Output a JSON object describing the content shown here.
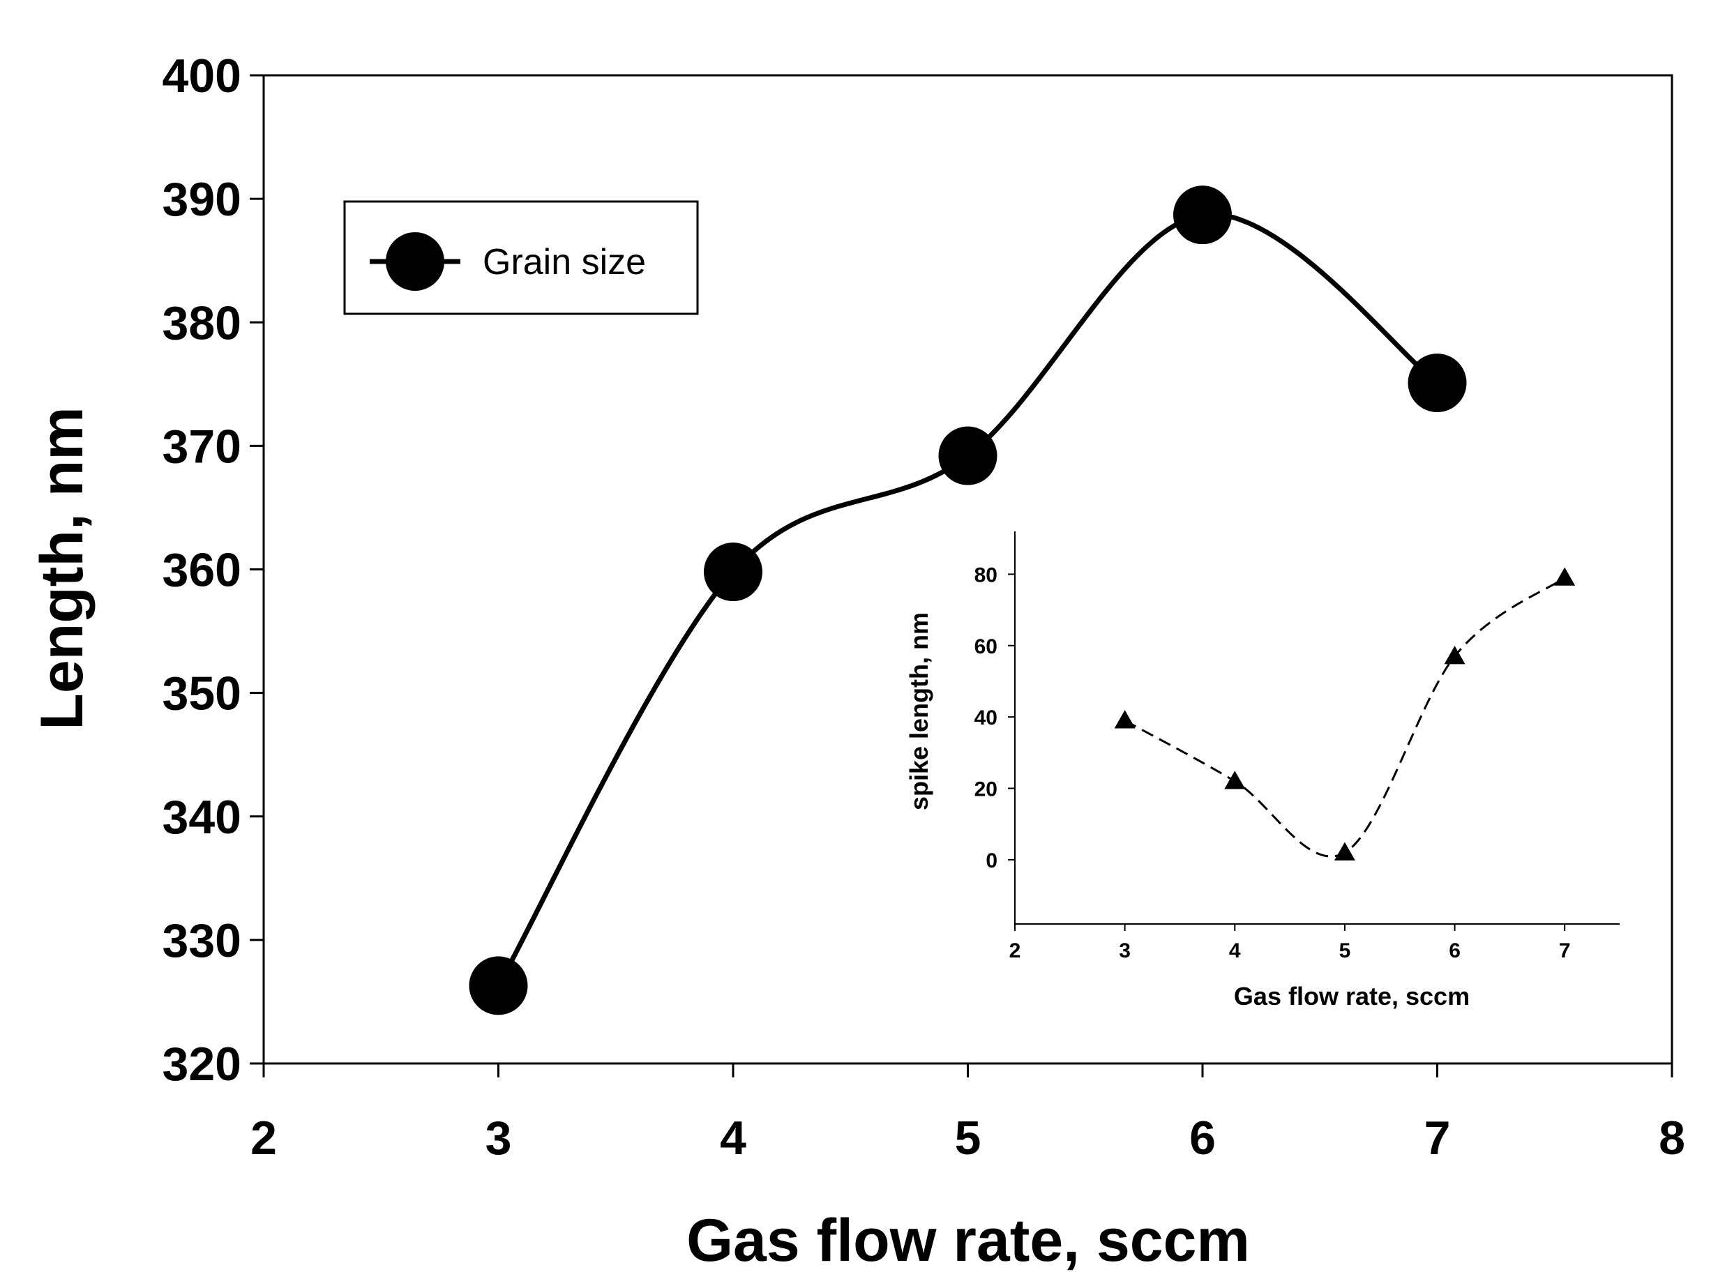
{
  "chart_data": [
    {
      "id": "main",
      "type": "line",
      "xlabel": "Gas flow rate, sccm",
      "ylabel": "Length, nm",
      "xlim": [
        2,
        8
      ],
      "ylim": [
        320,
        400
      ],
      "xticks": [
        2,
        3,
        4,
        5,
        6,
        7,
        8
      ],
      "yticks": [
        320,
        330,
        340,
        350,
        360,
        370,
        380,
        390,
        400
      ],
      "legend": {
        "position": "top-left",
        "entries": [
          "Grain size"
        ]
      },
      "series": [
        {
          "name": "Grain size",
          "marker": "circle",
          "line": "solid",
          "x": [
            3,
            4,
            5,
            6,
            7
          ],
          "y": [
            326.3,
            359.8,
            369.2,
            388.7,
            375.1
          ]
        }
      ]
    },
    {
      "id": "inset",
      "type": "line",
      "xlabel": "Gas flow rate, sccm",
      "ylabel": "spike length, nm",
      "xlim": [
        2,
        7.5
      ],
      "ylim": [
        -18,
        92
      ],
      "xticks": [
        2,
        3,
        4,
        5,
        6,
        7
      ],
      "yticks": [
        0,
        20,
        40,
        60,
        80
      ],
      "series": [
        {
          "name": "spike length",
          "marker": "triangle",
          "line": "dashed",
          "x": [
            3,
            4,
            5,
            6,
            7
          ],
          "y": [
            39,
            22,
            2,
            57,
            79
          ]
        }
      ]
    }
  ],
  "colors": {
    "ink": "#000000",
    "background": "#ffffff"
  }
}
